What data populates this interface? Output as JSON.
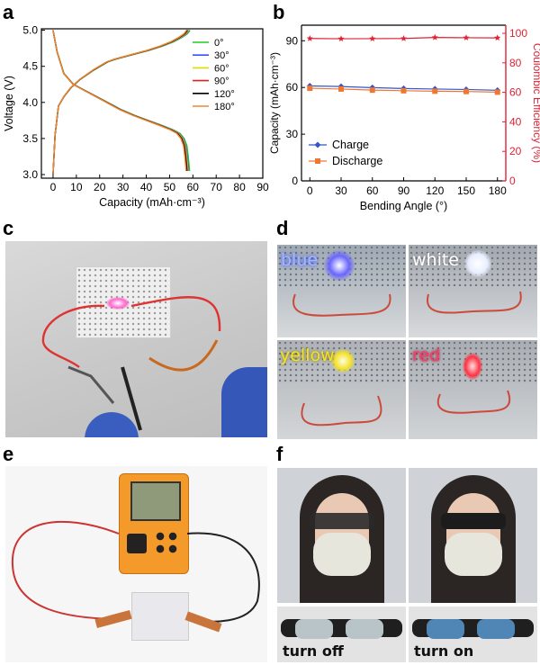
{
  "panels": {
    "a": "a",
    "b": "b",
    "c": "c",
    "d": "d",
    "e": "e",
    "f": "f"
  },
  "chart_data": [
    {
      "type": "line",
      "xlabel": "Capacity (mAh·cm⁻³)",
      "ylabel": "Voltage (V)",
      "xlim": [
        -5,
        90
      ],
      "ylim": [
        2.95,
        5.02
      ],
      "xticks": [
        0,
        10,
        20,
        30,
        40,
        50,
        60,
        70,
        80,
        90
      ],
      "yticks": [
        3.0,
        3.5,
        4.0,
        4.5,
        5.0
      ],
      "legend_position": "top-right",
      "colors": [
        "#22cc22",
        "#3355ff",
        "#dddd00",
        "#dd2222",
        "#000000",
        "#ee8833"
      ],
      "series": [
        {
          "name": "0°",
          "charge_end": 58.8,
          "discharge_end": 58.6
        },
        {
          "name": "30°",
          "charge_end": 58.4,
          "discharge_end": 58.2
        },
        {
          "name": "60°",
          "charge_end": 58.1,
          "discharge_end": 57.9
        },
        {
          "name": "90°",
          "charge_end": 57.8,
          "discharge_end": 57.6
        },
        {
          "name": "120°",
          "charge_end": 57.6,
          "discharge_end": 57.4
        },
        {
          "name": "180°",
          "charge_end": 57.3,
          "discharge_end": 57.1
        }
      ],
      "charge_curve": {
        "x_fraction": [
          0,
          0.015,
          0.04,
          0.08,
          0.13,
          0.2,
          0.3,
          0.4,
          0.46,
          0.6,
          0.7,
          0.8,
          0.88,
          0.94,
          0.98,
          1.0
        ],
        "voltage": [
          3.0,
          3.55,
          3.95,
          4.08,
          4.2,
          4.32,
          4.45,
          4.56,
          4.6,
          4.67,
          4.72,
          4.78,
          4.84,
          4.9,
          4.95,
          5.0
        ]
      },
      "discharge_curve": {
        "x_fraction": [
          0,
          0.03,
          0.08,
          0.15,
          0.22,
          0.3,
          0.4,
          0.5,
          0.6,
          0.7,
          0.8,
          0.88,
          0.93,
          0.96,
          0.98,
          0.99,
          1.0
        ],
        "voltage": [
          5.0,
          4.7,
          4.4,
          4.25,
          4.18,
          4.1,
          4.0,
          3.9,
          3.82,
          3.75,
          3.68,
          3.62,
          3.57,
          3.5,
          3.4,
          3.25,
          3.05
        ]
      }
    },
    {
      "type": "line",
      "xlabel": "Bending Angle (°)",
      "ylabel": "Capacity (mAh·cm⁻³)",
      "y2label": "Coulombic Efficiency (%)",
      "xlim": [
        -8,
        188
      ],
      "ylim": [
        0,
        100
      ],
      "y2lim": [
        0,
        105.5
      ],
      "xticks": [
        0,
        30,
        60,
        90,
        120,
        150,
        180
      ],
      "yticks": [
        0,
        30,
        60,
        90
      ],
      "y2ticks": [
        0,
        20,
        40,
        60,
        80,
        100
      ],
      "legend_position": "bottom-left",
      "x": [
        0,
        30,
        60,
        90,
        120,
        150,
        180
      ],
      "series": [
        {
          "name": "Charge",
          "color": "#3355cc",
          "marker": "diamond",
          "axis": "left",
          "values": [
            61.0,
            60.6,
            59.9,
            59.3,
            59.0,
            58.7,
            58.2
          ]
        },
        {
          "name": "Discharge",
          "color": "#ee7733",
          "marker": "square",
          "axis": "left",
          "values": [
            59.5,
            59.0,
            58.3,
            57.9,
            57.6,
            57.4,
            57.0
          ]
        },
        {
          "name": "",
          "color": "#dd2233",
          "marker": "star",
          "axis": "right",
          "values": [
            96.5,
            96.3,
            96.4,
            96.5,
            97.2,
            97.0,
            96.9
          ]
        }
      ]
    }
  ],
  "photos": {
    "d_labels": [
      "blue",
      "white",
      "yellow",
      "red"
    ],
    "f_labels": [
      "turn off",
      "turn on"
    ]
  }
}
